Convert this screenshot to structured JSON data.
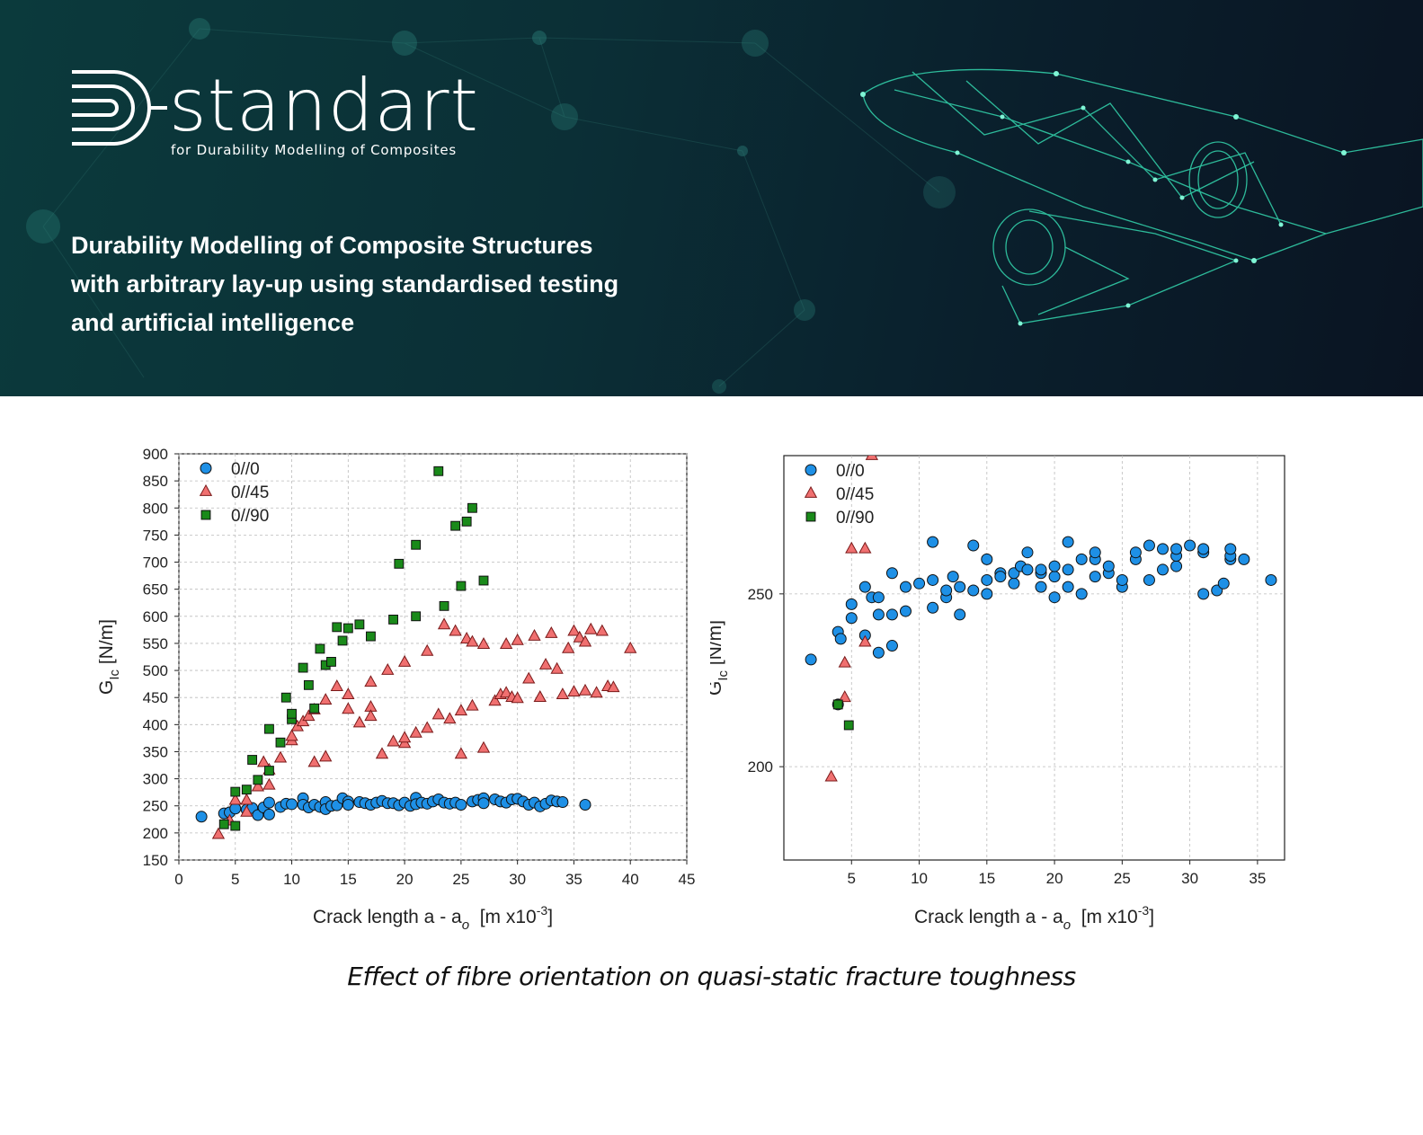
{
  "header": {
    "logo_text": "standart",
    "logo_tagline": "for Durability Modelling of Composites",
    "headline_lines": [
      "Durability Modelling of Composite Structures",
      "with arbitrary lay-up using standardised testing",
      "and artificial intelligence"
    ],
    "colors": {
      "accent": "#2fe0b0",
      "background": "#0b2f36"
    }
  },
  "caption": "Effect of fibre orientation on quasi-static fracture toughness",
  "chart_data": [
    {
      "type": "scatter",
      "title": "",
      "xlabel": "Crack length a - a",
      "xlabel_sub": "o",
      "xlabel_unit_pre": "[m x10",
      "xlabel_unit_sup": "-3",
      "xlabel_unit_post": "]",
      "ylabel": "G",
      "ylabel_sub": "Ic",
      "ylabel_unit": "[N/m]",
      "xlim": [
        0,
        45
      ],
      "ylim": [
        150,
        900
      ],
      "xticks": [
        0,
        5,
        10,
        15,
        20,
        25,
        30,
        35,
        40,
        45
      ],
      "yticks": [
        150,
        200,
        250,
        300,
        350,
        400,
        450,
        500,
        550,
        600,
        650,
        700,
        750,
        800,
        850,
        900
      ],
      "grid": true,
      "legend_position": "top-left",
      "series": [
        {
          "name": "0//0",
          "marker": "circle",
          "color": "#1e90e6",
          "points": [
            [
              2,
              230
            ],
            [
              4,
              236
            ],
            [
              4.5,
              238
            ],
            [
              5,
              245
            ],
            [
              6,
              243
            ],
            [
              6.5,
              246
            ],
            [
              7,
              233
            ],
            [
              7.5,
              247
            ],
            [
              8,
              234
            ],
            [
              8,
              256
            ],
            [
              9,
              248
            ],
            [
              9.5,
              254
            ],
            [
              10,
              253
            ],
            [
              11,
              264
            ],
            [
              11,
              252
            ],
            [
              11.5,
              247
            ],
            [
              12,
              252
            ],
            [
              12.5,
              248
            ],
            [
              13,
              257
            ],
            [
              13,
              244
            ],
            [
              13.5,
              250
            ],
            [
              14,
              251
            ],
            [
              14.5,
              264
            ],
            [
              15,
              258
            ],
            [
              15,
              252
            ],
            [
              16,
              257
            ],
            [
              16.5,
              255
            ],
            [
              17,
              252
            ],
            [
              17.5,
              256
            ],
            [
              18,
              259
            ],
            [
              18.5,
              255
            ],
            [
              19,
              255
            ],
            [
              19.5,
              251
            ],
            [
              20,
              256
            ],
            [
              20.5,
              250
            ],
            [
              21,
              265
            ],
            [
              21,
              253
            ],
            [
              21.5,
              256
            ],
            [
              22,
              254
            ],
            [
              22.5,
              258
            ],
            [
              23,
              262
            ],
            [
              23.5,
              256
            ],
            [
              24,
              254
            ],
            [
              24.5,
              256
            ],
            [
              25,
              252
            ],
            [
              26,
              258
            ],
            [
              26.5,
              261
            ],
            [
              27,
              264
            ],
            [
              27,
              255
            ],
            [
              28,
              262
            ],
            [
              28.5,
              258
            ],
            [
              29,
              256
            ],
            [
              29.5,
              262
            ],
            [
              30,
              263
            ],
            [
              30.5,
              258
            ],
            [
              31,
              252
            ],
            [
              31.5,
              256
            ],
            [
              32,
              249
            ],
            [
              32.5,
              254
            ],
            [
              33,
              260
            ],
            [
              33.5,
              258
            ],
            [
              34,
              257
            ],
            [
              36,
              252
            ]
          ]
        },
        {
          "name": "0//45",
          "marker": "triangle",
          "color": "#f07070",
          "points": [
            [
              3.5,
              197
            ],
            [
              4.5,
              222
            ],
            [
              5,
              260
            ],
            [
              6,
              260
            ],
            [
              6,
              238
            ],
            [
              7,
              285
            ],
            [
              7.5,
              330
            ],
            [
              8,
              288
            ],
            [
              8,
              316
            ],
            [
              9,
              338
            ],
            [
              10,
              370
            ],
            [
              10,
              378
            ],
            [
              10.5,
              396
            ],
            [
              11,
              405
            ],
            [
              11.5,
              415
            ],
            [
              12,
              427
            ],
            [
              12,
              330
            ],
            [
              13,
              340
            ],
            [
              13,
              445
            ],
            [
              14,
              470
            ],
            [
              15,
              455
            ],
            [
              15,
              428
            ],
            [
              16,
              403
            ],
            [
              17,
              432
            ],
            [
              17,
              415
            ],
            [
              17,
              478
            ],
            [
              18,
              345
            ],
            [
              18.5,
              500
            ],
            [
              19,
              368
            ],
            [
              20,
              515
            ],
            [
              20,
              365
            ],
            [
              20,
              375
            ],
            [
              21,
              384
            ],
            [
              22,
              393
            ],
            [
              22,
              535
            ],
            [
              23,
              418
            ],
            [
              24,
              410
            ],
            [
              23.5,
              584
            ],
            [
              24.5,
              572
            ],
            [
              25,
              425
            ],
            [
              25,
              345
            ],
            [
              25.5,
              558
            ],
            [
              26,
              552
            ],
            [
              26,
              434
            ],
            [
              27,
              548
            ],
            [
              27,
              356
            ],
            [
              28,
              443
            ],
            [
              28.5,
              455
            ],
            [
              29,
              548
            ],
            [
              29,
              458
            ],
            [
              29.5,
              450
            ],
            [
              30,
              448
            ],
            [
              30,
              555
            ],
            [
              31,
              484
            ],
            [
              31.5,
              563
            ],
            [
              32,
              450
            ],
            [
              32,
              450
            ],
            [
              32.5,
              510
            ],
            [
              33,
              568
            ],
            [
              33.5,
              502
            ],
            [
              34,
              455
            ],
            [
              34.5,
              540
            ],
            [
              35,
              572
            ],
            [
              35,
              460
            ],
            [
              35.5,
              560
            ],
            [
              36,
              552
            ],
            [
              36,
              462
            ],
            [
              36.5,
              575
            ],
            [
              37,
              458
            ],
            [
              37.5,
              572
            ],
            [
              38,
              470
            ],
            [
              38.5,
              468
            ],
            [
              40,
              540
            ]
          ]
        },
        {
          "name": "0//90",
          "marker": "square",
          "color": "#1a8a1a",
          "points": [
            [
              4,
              216
            ],
            [
              5,
              213
            ],
            [
              5,
              276
            ],
            [
              6,
              280
            ],
            [
              6.5,
              335
            ],
            [
              7,
              298
            ],
            [
              8,
              392
            ],
            [
              8,
              315
            ],
            [
              9,
              367
            ],
            [
              9.5,
              450
            ],
            [
              10,
              410
            ],
            [
              10,
              420
            ],
            [
              11,
              505
            ],
            [
              11.5,
              473
            ],
            [
              12,
              430
            ],
            [
              12.5,
              540
            ],
            [
              13,
              510
            ],
            [
              13.5,
              516
            ],
            [
              14,
              580
            ],
            [
              14.5,
              555
            ],
            [
              15,
              578
            ],
            [
              16,
              585
            ],
            [
              17,
              563
            ],
            [
              19,
              594
            ],
            [
              19.5,
              697
            ],
            [
              21,
              732
            ],
            [
              21,
              600
            ],
            [
              23,
              868
            ],
            [
              23.5,
              619
            ],
            [
              24.5,
              767
            ],
            [
              25,
              656
            ],
            [
              25.5,
              775
            ],
            [
              26,
              800
            ],
            [
              27,
              666
            ]
          ]
        }
      ]
    },
    {
      "type": "scatter",
      "title": "",
      "xlabel": "Crack length a - a",
      "xlabel_sub": "o",
      "xlabel_unit_pre": "[m x10",
      "xlabel_unit_sup": "-3",
      "xlabel_unit_post": "]",
      "ylabel": "G",
      "ylabel_sub": "Ic",
      "ylabel_unit": "[N/m]",
      "xlim": [
        0,
        37
      ],
      "ylim": [
        173,
        290
      ],
      "xticks": [
        5,
        10,
        15,
        20,
        25,
        30,
        35
      ],
      "yticks": [
        200,
        250
      ],
      "grid": true,
      "legend_position": "top-left",
      "series": [
        {
          "name": "0//0",
          "marker": "circle",
          "color": "#1e90e6",
          "points": [
            [
              2,
              231
            ],
            [
              4,
              218
            ],
            [
              4,
              239
            ],
            [
              4.2,
              237
            ],
            [
              5,
              243
            ],
            [
              5,
              247
            ],
            [
              6,
              252
            ],
            [
              6,
              238
            ],
            [
              6.5,
              249
            ],
            [
              7,
              233
            ],
            [
              7,
              244
            ],
            [
              7,
              249
            ],
            [
              8,
              235
            ],
            [
              8,
              244
            ],
            [
              8,
              256
            ],
            [
              9,
              245
            ],
            [
              9,
              252
            ],
            [
              10,
              253
            ],
            [
              11,
              265
            ],
            [
              11,
              246
            ],
            [
              11,
              254
            ],
            [
              12,
              249
            ],
            [
              12,
              251
            ],
            [
              12.5,
              255
            ],
            [
              13,
              252
            ],
            [
              13,
              244
            ],
            [
              14,
              251
            ],
            [
              14,
              264
            ],
            [
              15,
              250
            ],
            [
              15,
              254
            ],
            [
              15,
              260
            ],
            [
              16,
              256
            ],
            [
              16,
              255
            ],
            [
              17,
              253
            ],
            [
              17,
              256
            ],
            [
              17.5,
              258
            ],
            [
              18,
              257
            ],
            [
              18,
              262
            ],
            [
              19,
              252
            ],
            [
              19,
              256
            ],
            [
              19,
              257
            ],
            [
              20,
              249
            ],
            [
              20,
              255
            ],
            [
              20,
              258
            ],
            [
              21,
              252
            ],
            [
              21,
              257
            ],
            [
              21,
              265
            ],
            [
              22,
              250
            ],
            [
              22,
              260
            ],
            [
              23,
              255
            ],
            [
              23,
              260
            ],
            [
              23,
              262
            ],
            [
              24,
              256
            ],
            [
              24,
              258
            ],
            [
              25,
              252
            ],
            [
              25,
              254
            ],
            [
              26,
              260
            ],
            [
              26,
              262
            ],
            [
              27,
              264
            ],
            [
              27,
              254
            ],
            [
              28,
              257
            ],
            [
              28,
              263
            ],
            [
              29,
              258
            ],
            [
              29,
              261
            ],
            [
              29,
              263
            ],
            [
              30,
              264
            ],
            [
              31,
              250
            ],
            [
              31,
              262
            ],
            [
              31,
              263
            ],
            [
              32,
              251
            ],
            [
              32.5,
              253
            ],
            [
              33,
              260
            ],
            [
              33,
              261
            ],
            [
              33,
              263
            ],
            [
              34,
              260
            ],
            [
              36,
              254
            ]
          ]
        },
        {
          "name": "0//45",
          "marker": "triangle",
          "color": "#f07070",
          "points": [
            [
              3.5,
              197
            ],
            [
              4.5,
              220
            ],
            [
              4.5,
              230
            ],
            [
              5,
              263
            ],
            [
              6,
              236
            ],
            [
              6,
              263
            ],
            [
              6.5,
              290
            ]
          ]
        },
        {
          "name": "0//90",
          "marker": "square",
          "color": "#1a8a1a",
          "points": [
            [
              4,
              218
            ],
            [
              4.8,
              212
            ]
          ]
        }
      ]
    }
  ]
}
